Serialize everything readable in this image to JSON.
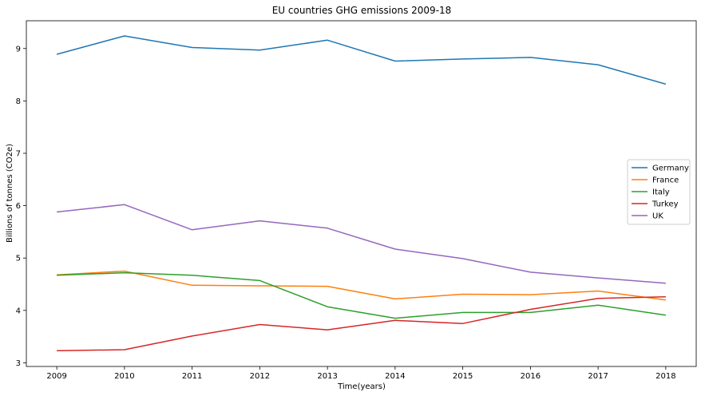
{
  "chart_data": {
    "type": "line",
    "title": "EU countries GHG emissions 2009-18",
    "xlabel": "Time(years)",
    "ylabel": "Billions of tonnes (CO2e)",
    "x": [
      2009,
      2010,
      2011,
      2012,
      2013,
      2014,
      2015,
      2016,
      2017,
      2018
    ],
    "xlim": [
      2008.55,
      2018.45
    ],
    "ylim": [
      2.93,
      9.53
    ],
    "yticks": [
      3,
      4,
      5,
      6,
      7,
      8,
      9
    ],
    "grid": false,
    "legend_position": "center-right",
    "series": [
      {
        "name": "Germany",
        "color": "#1f77b4",
        "values": [
          8.89,
          9.24,
          9.02,
          8.97,
          9.16,
          8.76,
          8.8,
          8.83,
          8.69,
          8.32
        ]
      },
      {
        "name": "France",
        "color": "#ff7f0e",
        "values": [
          4.68,
          4.75,
          4.48,
          4.47,
          4.46,
          4.22,
          4.31,
          4.3,
          4.37,
          4.2
        ]
      },
      {
        "name": "Italy",
        "color": "#2ca02c",
        "values": [
          4.67,
          4.72,
          4.67,
          4.57,
          4.07,
          3.85,
          3.96,
          3.96,
          4.1,
          3.91
        ]
      },
      {
        "name": "Turkey",
        "color": "#d62728",
        "values": [
          3.23,
          3.25,
          3.51,
          3.73,
          3.63,
          3.81,
          3.75,
          4.02,
          4.23,
          4.26
        ]
      },
      {
        "name": "UK",
        "color": "#9467bd",
        "values": [
          5.88,
          6.02,
          5.54,
          5.71,
          5.57,
          5.17,
          4.99,
          4.73,
          4.62,
          4.52
        ]
      }
    ]
  }
}
